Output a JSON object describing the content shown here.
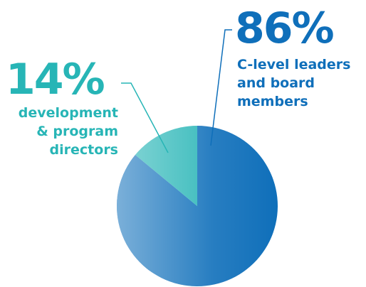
{
  "chart_data": {
    "type": "pie",
    "categories": [
      "C-level leaders and board members",
      "development & program directors"
    ],
    "values": [
      86,
      14
    ],
    "value_labels": [
      "86%",
      "14%"
    ],
    "colors": [
      "#0f6fba",
      "#27b5b6"
    ]
  }
}
